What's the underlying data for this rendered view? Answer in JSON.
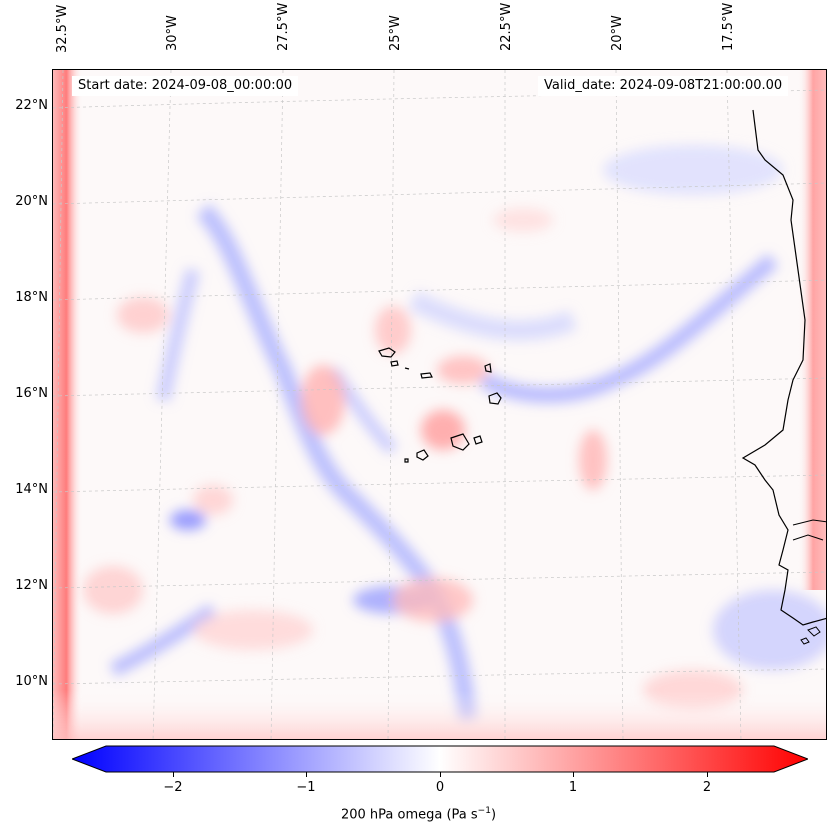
{
  "map": {
    "start_label": "Start date: 2024-09-08_00:00:00",
    "valid_label": "Valid_date: 2024-09-08T21:00:00.00",
    "lon_labels": [
      "32.5°W",
      "30°W",
      "27.5°W",
      "25°W",
      "22.5°W",
      "20°W",
      "17.5°W"
    ],
    "lat_labels": [
      "22°N",
      "20°N",
      "18°N",
      "16°N",
      "14°N",
      "12°N",
      "10°N"
    ],
    "field": "200 hPa omega",
    "lon_range": [
      -32.8,
      -15.3
    ],
    "lat_range": [
      8.9,
      22.8
    ]
  },
  "colorbar": {
    "label_text": "200 hPa omega (Pa s",
    "label_exp": "−1",
    "label_close": ")",
    "ticks": [
      "−2",
      "−1",
      "0",
      "1",
      "2"
    ],
    "range": [
      -2.75,
      2.75
    ],
    "colors": {
      "low": "#0000ff",
      "mid": "#ffffff",
      "high": "#ff0000"
    }
  }
}
